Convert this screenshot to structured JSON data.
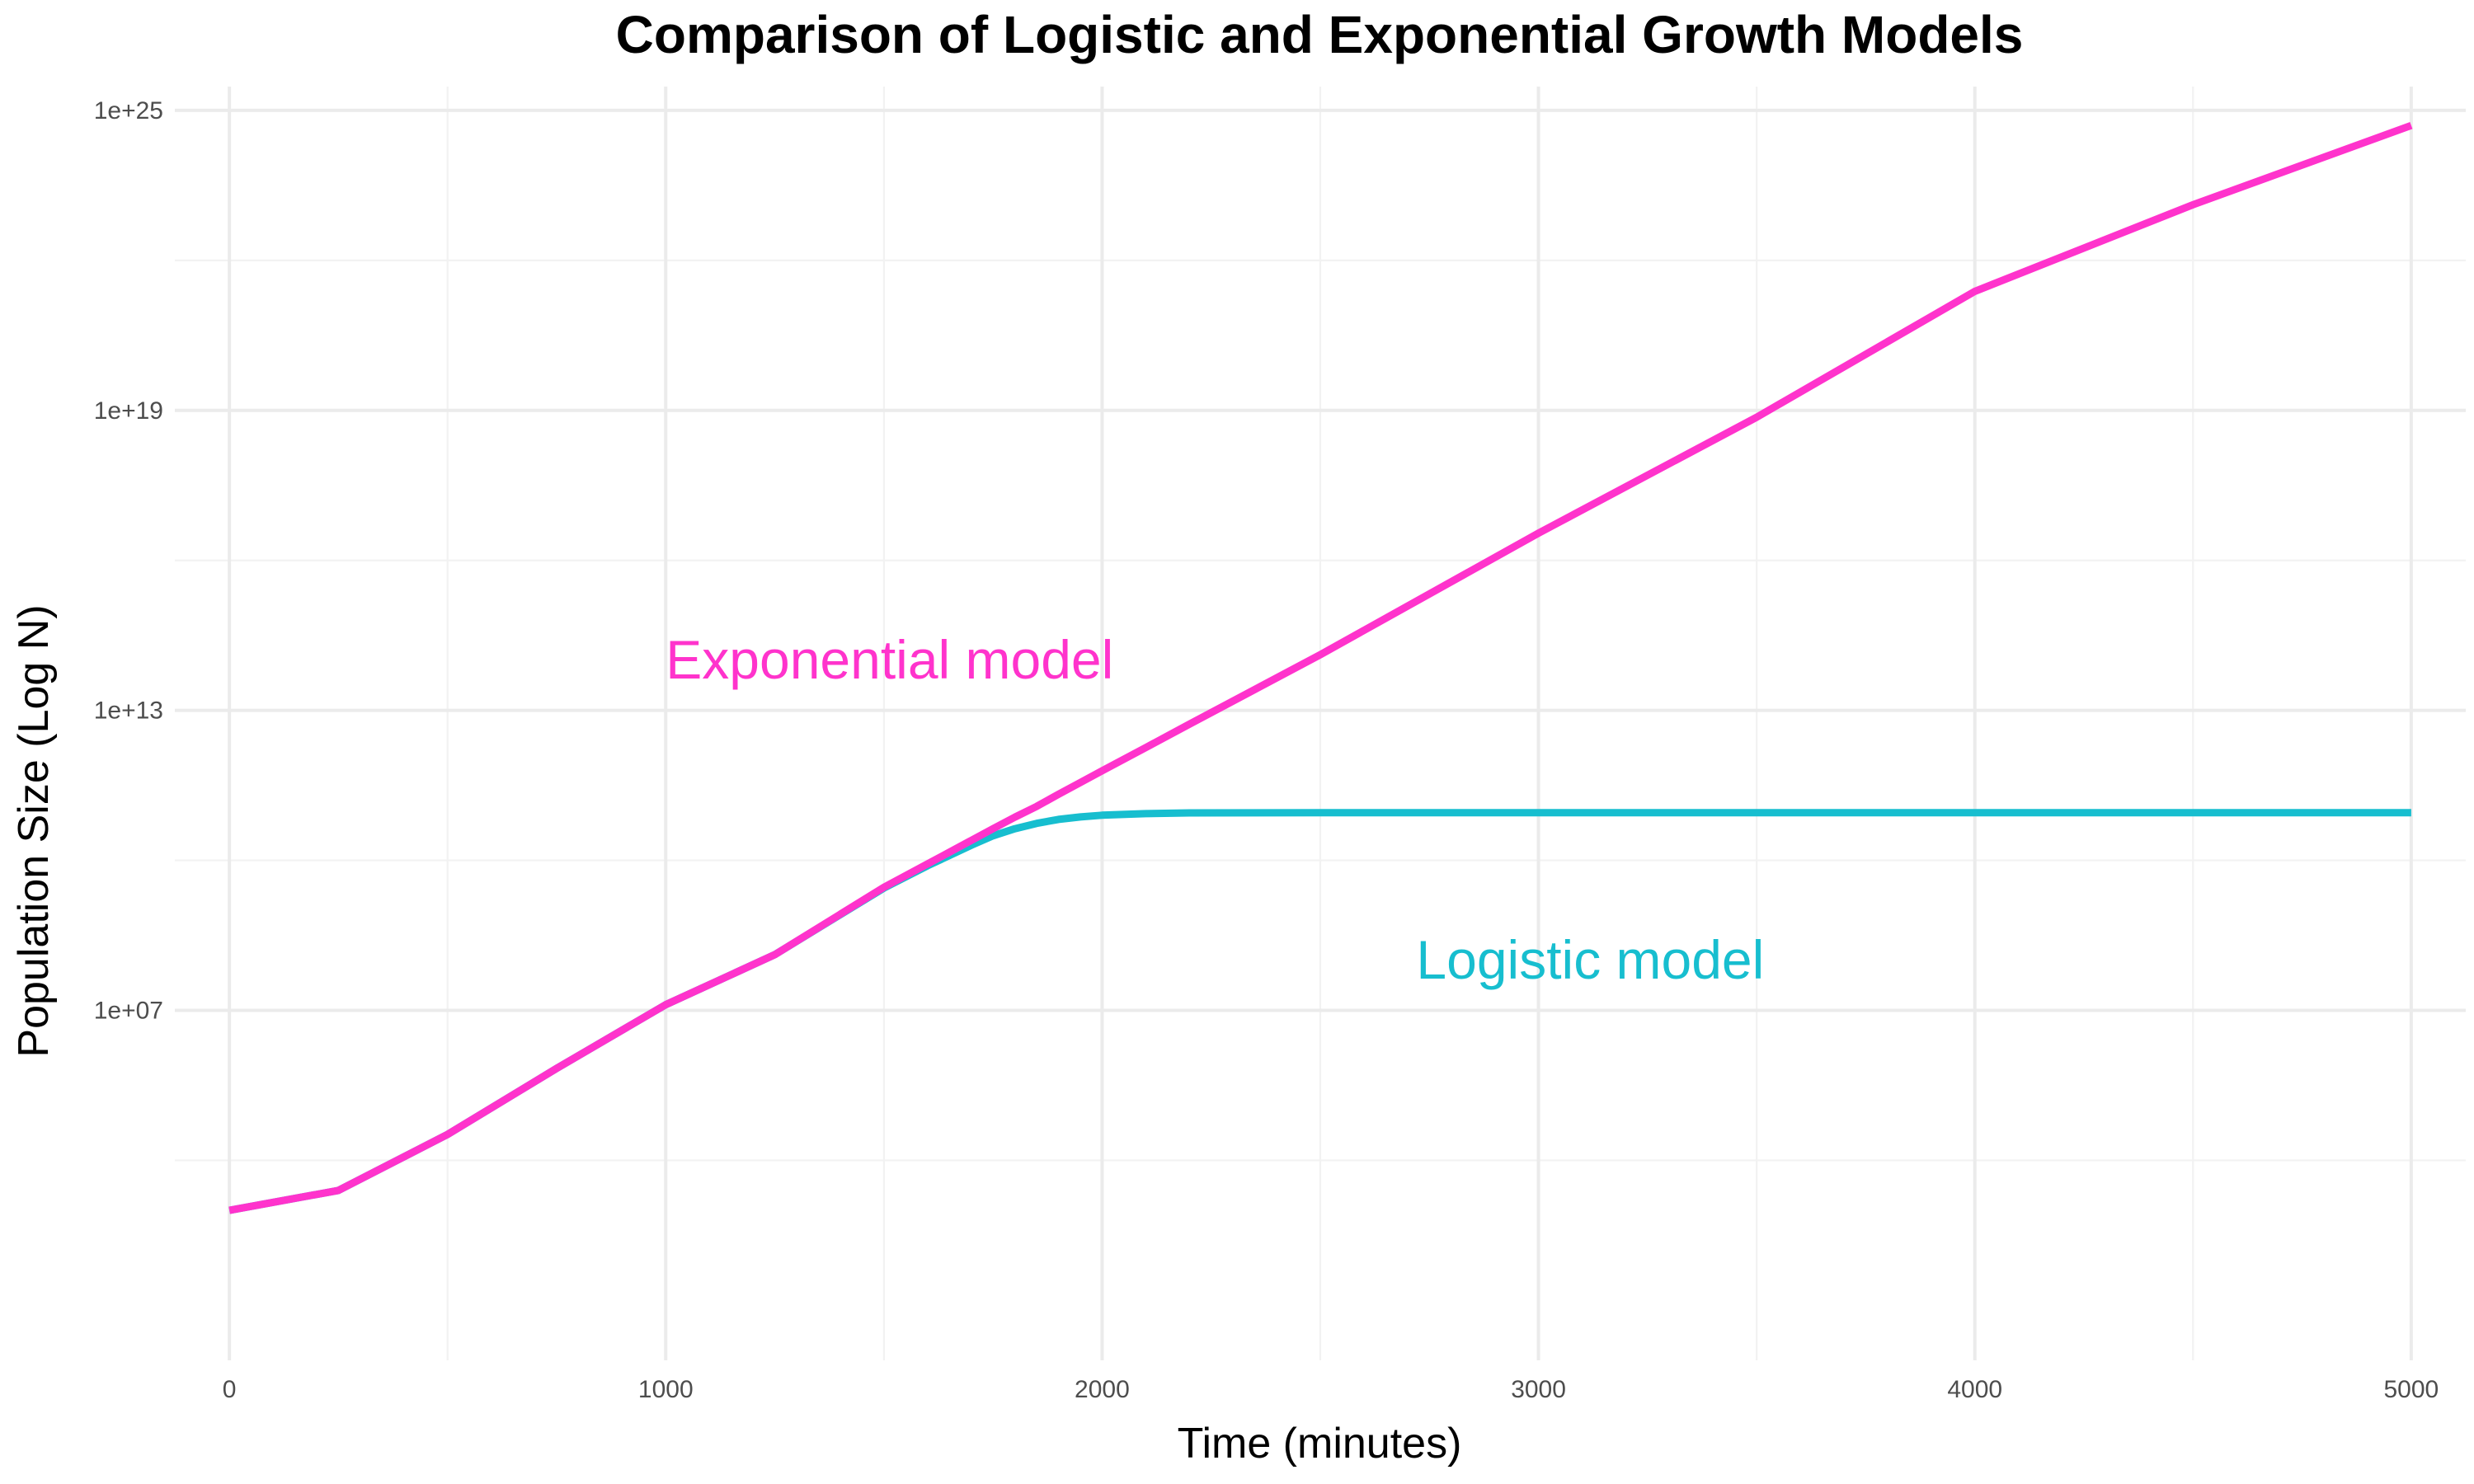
{
  "chart_data": {
    "type": "line",
    "title": "Comparison of Logistic and Exponential Growth Models",
    "xlabel": "Time (minutes)",
    "ylabel": "Population Size (Log N)",
    "y_scale": "log10",
    "xlim": [
      -125,
      5125
    ],
    "ylim": [
      1,
      3e+25
    ],
    "x_ticks": [
      0,
      1000,
      2000,
      3000,
      4000,
      5000
    ],
    "x_tick_labels": [
      "0",
      "1000",
      "2000",
      "3000",
      "4000",
      "5000"
    ],
    "x_minor_ticks": [
      500,
      1500,
      2500,
      3500,
      4500
    ],
    "y_ticks": [
      10000000.0,
      10000000000000.0,
      1e+19,
      1e+25
    ],
    "y_tick_labels": [
      "1e+07",
      "1e+13",
      "1e+19",
      "1e+25"
    ],
    "y_minor_ticks": [
      10000.0,
      10000000000.0,
      1e+16,
      1e+22
    ],
    "grid": true,
    "legend": "none",
    "x": [
      0,
      250,
      500,
      750,
      1000,
      1250,
      1500,
      1600,
      1700,
      1750,
      1800,
      1850,
      1900,
      1950,
      2000,
      2100,
      2200,
      2500,
      3000,
      3500,
      4000,
      4500,
      5000
    ],
    "series": [
      {
        "name": "Exponential model",
        "color": "#ff33cc",
        "values": [
          1000,
          2500.0,
          33000.0,
          690000.0,
          13000000.0,
          130000000.0,
          2900000000.0,
          8500000000.0,
          25000000000.0,
          43000000000.0,
          73000000000.0,
          120000000000.0,
          210000000000.0,
          360000000000.0,
          620000000000.0,
          1800000000000.0,
          5300000000000.0,
          130000000000000.0,
          3.5e+16,
          7.3e+18,
          2.4e+21,
          1.3e+23,
          5e+24
        ]
      },
      {
        "name": "Logistic model",
        "color": "#17becf",
        "values": [
          1000,
          2500.0,
          33000.0,
          690000.0,
          13000000.0,
          130000000.0,
          2800000000.0,
          7800000000.0,
          20000000000.0,
          31000000000.0,
          43000000000.0,
          55000000000.0,
          66000000000.0,
          74000000000.0,
          80000000000.0,
          86000000000.0,
          89000000000.0,
          90000000000.0,
          90000000000.0,
          90000000000.0,
          90000000000.0,
          90000000000.0,
          90000000000.0
        ]
      }
    ],
    "annotations": [
      {
        "text": "Exponential model",
        "x": 1000,
        "y": 100000000000000.0,
        "color": "#ff33cc",
        "anchor": "start"
      },
      {
        "text": "Logistic model",
        "x": 2720,
        "y": 100000000.0,
        "color": "#17becf",
        "anchor": "start"
      }
    ]
  }
}
